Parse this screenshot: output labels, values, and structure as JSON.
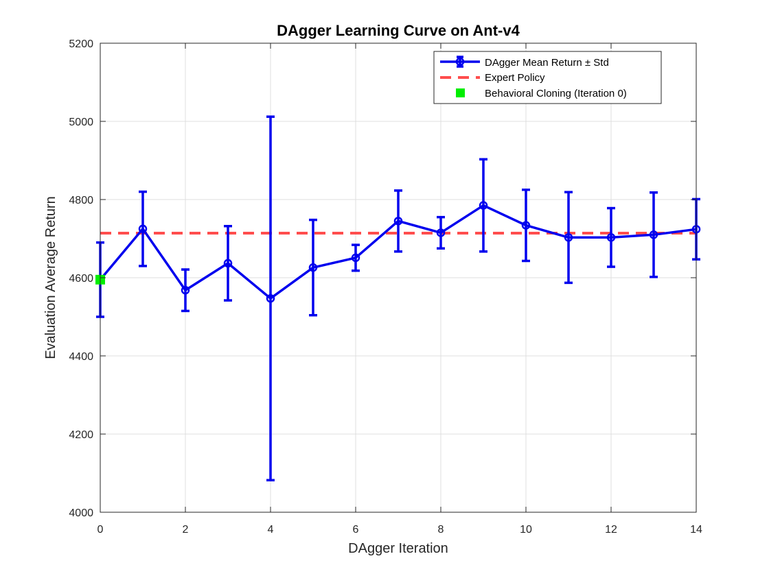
{
  "chart_data": {
    "type": "line",
    "title": "DAgger Learning Curve on Ant-v4",
    "xlabel": "DAgger Iteration",
    "ylabel": "Evaluation Average Return",
    "xlim": [
      0,
      14
    ],
    "ylim": [
      4000,
      5200
    ],
    "xticks": [
      0,
      2,
      4,
      6,
      8,
      10,
      12,
      14
    ],
    "yticks": [
      4000,
      4200,
      4400,
      4600,
      4800,
      5000,
      5200
    ],
    "grid": true,
    "legend_position": "top-right",
    "series": [
      {
        "name": "DAgger Mean Return ± Std",
        "kind": "line-errorbar",
        "color": "#0000ee",
        "x": [
          0,
          1,
          2,
          3,
          4,
          5,
          6,
          7,
          8,
          9,
          10,
          11,
          12,
          13,
          14
        ],
        "y": [
          4595,
          4725,
          4568,
          4637,
          4547,
          4626,
          4651,
          4745,
          4715,
          4785,
          4734,
          4703,
          4703,
          4710,
          4724
        ],
        "err": [
          95,
          95,
          53,
          95,
          465,
          122,
          33,
          78,
          40,
          118,
          91,
          116,
          75,
          108,
          77
        ]
      },
      {
        "name": "Expert Policy",
        "kind": "hline-dashed",
        "color": "#ff4d4d",
        "y": 4714
      },
      {
        "name": "Behavioral Cloning (Iteration 0)",
        "kind": "marker-square",
        "color": "#00ee00",
        "x": [
          0
        ],
        "y": [
          4595
        ]
      }
    ]
  }
}
